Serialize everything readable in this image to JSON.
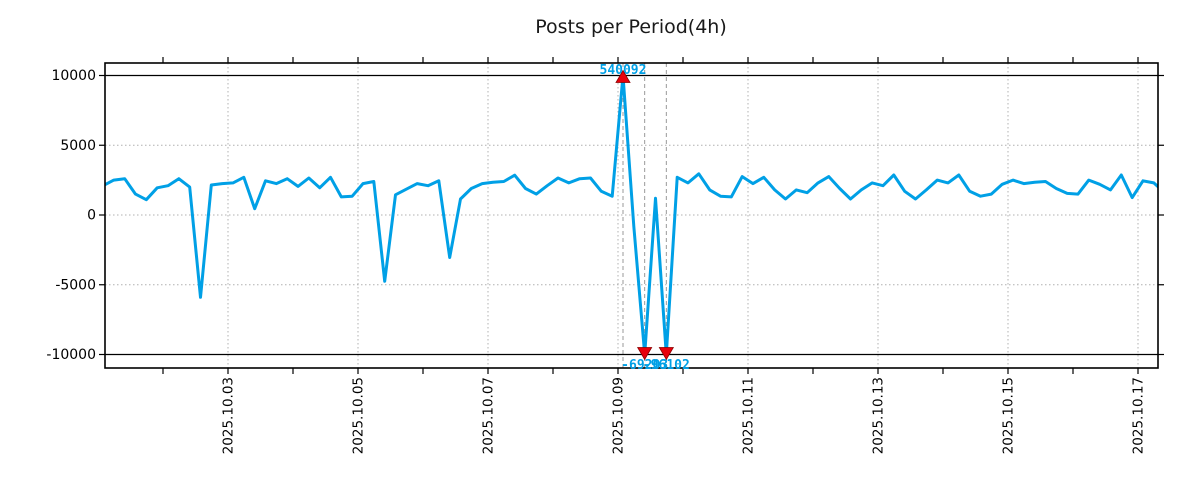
{
  "title": "Posts per Period(4h)",
  "colors": {
    "line": "#00A0E6",
    "annotation_text": "#00A0E6",
    "marker_fill": "#E8000B",
    "marker_edge": "#8B0000",
    "grid": "#b0b0b0",
    "guide": "#999999",
    "axis": "#000000",
    "title": "#1a1a1a",
    "background": "#ffffff"
  },
  "chart_data": {
    "type": "line",
    "title": "Posts per Period(4h)",
    "series_name": "posts",
    "x_interval_hours": 4,
    "x_start_approx": "2025-10-01 02:00",
    "x_tick_labels": [
      "2025.10.03",
      "2025.10.05",
      "2025.10.07",
      "2025.10.09",
      "2025.10.11",
      "2025.10.13",
      "2025.10.15",
      "2025.10.17"
    ],
    "y_ticks": [
      10000,
      5000,
      0,
      -5000,
      -10000
    ],
    "y_tick_labels": [
      "10000",
      "5000",
      "0",
      "-5000",
      "-10000"
    ],
    "ylim_clip": [
      -10000,
      10000
    ],
    "solid_hlines": [
      10000,
      -10000
    ],
    "grid": true,
    "values": [
      2100,
      2500,
      2600,
      1500,
      1100,
      1950,
      2100,
      2600,
      2000,
      -5900,
      2150,
      2250,
      2300,
      2700,
      450,
      2450,
      2250,
      2600,
      2050,
      2650,
      1950,
      2700,
      1300,
      1350,
      2250,
      2400,
      -4750,
      1450,
      1850,
      2250,
      2100,
      2450,
      -3050,
      1150,
      1900,
      2250,
      2350,
      2400,
      2850,
      1900,
      1500,
      2100,
      2650,
      2300,
      2600,
      2650,
      1700,
      1350,
      540092,
      -800,
      -69203,
      1200,
      -96102,
      2700,
      2300,
      2950,
      1800,
      1350,
      1300,
      2750,
      2250,
      2700,
      1800,
      1150,
      1800,
      1600,
      2300,
      2750,
      1900,
      1150,
      1800,
      2300,
      2100,
      2870,
      1700,
      1150,
      1800,
      2500,
      2300,
      2870,
      1700,
      1350,
      1500,
      2200,
      2500,
      2250,
      2350,
      2400,
      1900,
      1550,
      1500,
      2500,
      2200,
      1800,
      2870,
      1250,
      2450,
      2300,
      1600
    ],
    "annotated_extremes": [
      {
        "index": 48,
        "value": 540092,
        "label": "540092",
        "type": "max"
      },
      {
        "index": 50,
        "value": -69203,
        "label": "-69203",
        "type": "min"
      },
      {
        "index": 52,
        "value": -96102,
        "label": "-96102",
        "type": "min"
      }
    ]
  }
}
